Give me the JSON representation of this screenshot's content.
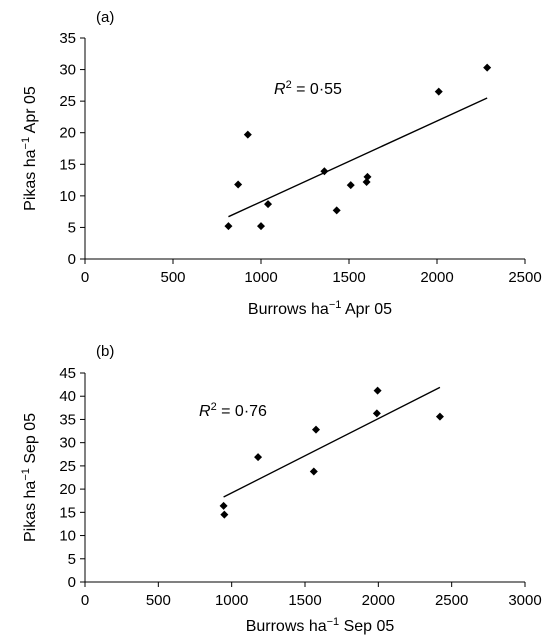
{
  "chart_data": [
    {
      "panel": "(a)",
      "type": "scatter",
      "xlabel": {
        "pre": "Burrows ha",
        "sup": "−1",
        "post": " Apr 05"
      },
      "ylabel": {
        "pre": "Pikas ha",
        "sup": "−1",
        "post": " Apr 05"
      },
      "annotation": {
        "italic": "R",
        "sup": "2",
        "rest": " = 0·55"
      },
      "xlim": [
        0,
        2500
      ],
      "ylim": [
        0,
        35
      ],
      "xticks": [
        0,
        500,
        1000,
        1500,
        2000,
        2500
      ],
      "yticks": [
        0,
        5,
        10,
        15,
        20,
        25,
        30,
        35
      ],
      "grid": false,
      "points": [
        {
          "x": 815,
          "y": 5.2
        },
        {
          "x": 870,
          "y": 11.8
        },
        {
          "x": 925,
          "y": 19.7
        },
        {
          "x": 1000,
          "y": 5.2
        },
        {
          "x": 1040,
          "y": 8.7
        },
        {
          "x": 1360,
          "y": 13.9
        },
        {
          "x": 1430,
          "y": 7.7
        },
        {
          "x": 1510,
          "y": 11.7
        },
        {
          "x": 1600,
          "y": 12.2
        },
        {
          "x": 1605,
          "y": 13.0
        },
        {
          "x": 2010,
          "y": 26.5
        },
        {
          "x": 2285,
          "y": 30.3
        }
      ],
      "trendline": [
        {
          "x": 815,
          "y": 6.7
        },
        {
          "x": 2285,
          "y": 25.5
        }
      ]
    },
    {
      "panel": "(b)",
      "type": "scatter",
      "xlabel": {
        "pre": "Burrows ha",
        "sup": "−1",
        "post": " Sep 05"
      },
      "ylabel": {
        "pre": "Pikas ha",
        "sup": "−1",
        "post": " Sep 05"
      },
      "annotation": {
        "italic": "R",
        "sup": "2",
        "rest": " = 0·76"
      },
      "xlim": [
        0,
        3000
      ],
      "ylim": [
        0,
        45
      ],
      "xticks": [
        0,
        500,
        1000,
        1500,
        2000,
        2500,
        3000
      ],
      "yticks": [
        0,
        5,
        10,
        15,
        20,
        25,
        30,
        35,
        40,
        45
      ],
      "grid": false,
      "points": [
        {
          "x": 945,
          "y": 16.4
        },
        {
          "x": 950,
          "y": 14.5
        },
        {
          "x": 1180,
          "y": 26.9
        },
        {
          "x": 1560,
          "y": 23.8
        },
        {
          "x": 1575,
          "y": 32.8
        },
        {
          "x": 1990,
          "y": 36.3
        },
        {
          "x": 1995,
          "y": 41.2
        },
        {
          "x": 2420,
          "y": 35.6
        }
      ],
      "trendline": [
        {
          "x": 945,
          "y": 18.3
        },
        {
          "x": 2420,
          "y": 41.9
        }
      ]
    }
  ]
}
